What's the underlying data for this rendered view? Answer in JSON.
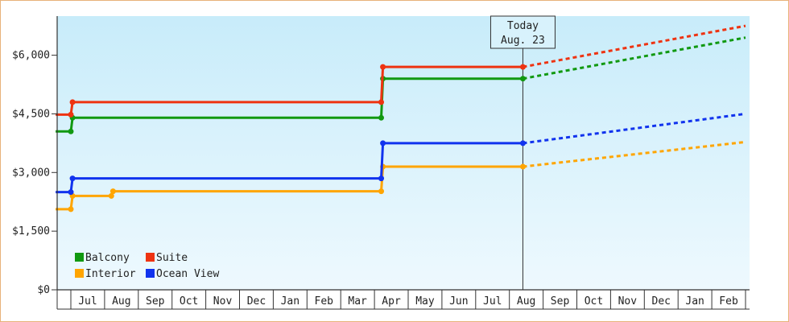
{
  "chart_data": {
    "type": "line",
    "title": "",
    "xlabel": "",
    "ylabel": "",
    "ylim": [
      0,
      7000
    ],
    "yticks": [
      "$0",
      "$1,500",
      "$3,000",
      "$4,500",
      "$6,000"
    ],
    "ytick_values": [
      0,
      1500,
      3000,
      4500,
      6000
    ],
    "month_labels": [
      "Jul",
      "Aug",
      "Sep",
      "Oct",
      "Nov",
      "Dec",
      "Jan",
      "Feb",
      "Mar",
      "Apr",
      "May",
      "Jun",
      "Jul",
      "Aug",
      "Sep",
      "Oct",
      "Nov",
      "Dec",
      "Jan",
      "Feb"
    ],
    "today": {
      "line1": "Today",
      "line2": "Aug. 23",
      "x": 13.4
    },
    "x_range": [
      -0.45,
      20.0
    ],
    "legend": {
      "placement": "bottom-left"
    },
    "series": [
      {
        "name": "Balcony",
        "color": "#119911",
        "points": [
          [
            -0.45,
            4050
          ],
          [
            0.0,
            4050
          ],
          [
            0.05,
            4400
          ],
          [
            9.2,
            4400
          ],
          [
            9.25,
            5400
          ],
          [
            13.4,
            5400
          ]
        ],
        "forecast": [
          [
            13.4,
            5400
          ],
          [
            20.0,
            6450
          ]
        ]
      },
      {
        "name": "Suite",
        "color": "#ee3311",
        "points": [
          [
            -0.45,
            4480
          ],
          [
            0.0,
            4480
          ],
          [
            0.05,
            4800
          ],
          [
            9.2,
            4800
          ],
          [
            9.25,
            5700
          ],
          [
            13.4,
            5700
          ]
        ],
        "forecast": [
          [
            13.4,
            5700
          ],
          [
            20.0,
            6750
          ]
        ]
      },
      {
        "name": "Interior",
        "color": "#ffa500",
        "points": [
          [
            -0.45,
            2060
          ],
          [
            0.0,
            2060
          ],
          [
            0.05,
            2400
          ],
          [
            1.2,
            2400
          ],
          [
            1.25,
            2520
          ],
          [
            9.2,
            2520
          ],
          [
            9.25,
            3150
          ],
          [
            13.4,
            3150
          ]
        ],
        "forecast": [
          [
            13.4,
            3150
          ],
          [
            20.0,
            3780
          ]
        ]
      },
      {
        "name": "Ocean View",
        "color": "#1133ee",
        "points": [
          [
            -0.45,
            2500
          ],
          [
            0.0,
            2500
          ],
          [
            0.05,
            2850
          ],
          [
            9.2,
            2850
          ],
          [
            9.25,
            3750
          ],
          [
            13.4,
            3750
          ]
        ],
        "forecast": [
          [
            13.4,
            3750
          ],
          [
            20.0,
            4500
          ]
        ]
      }
    ]
  }
}
